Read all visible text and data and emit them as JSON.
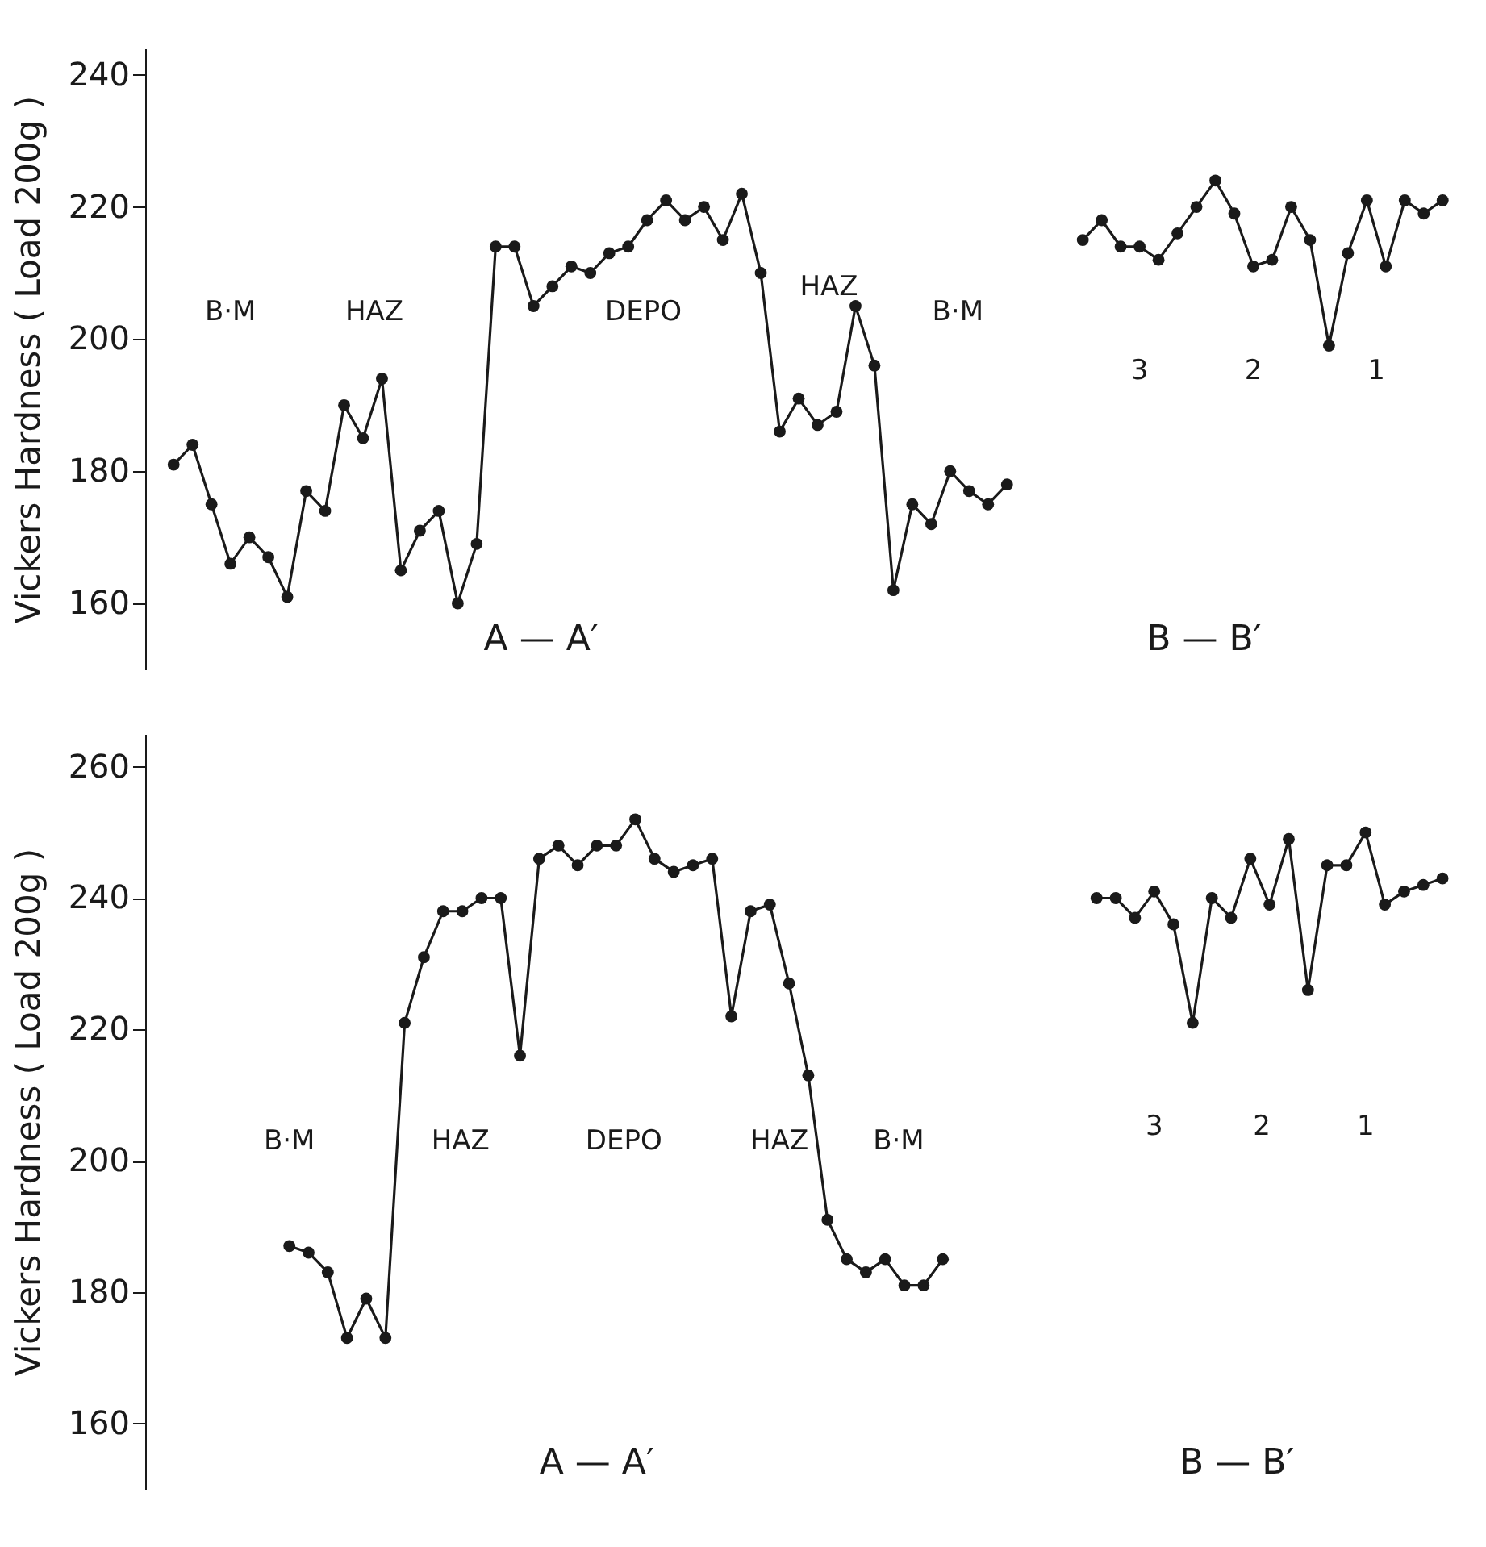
{
  "chart_data": [
    {
      "type": "line",
      "ylabel": "Vickers  Hardness  ( Load 200g )",
      "categories": [
        null,
        null,
        null,
        null,
        null,
        null,
        null,
        null,
        null,
        null,
        null,
        null,
        null,
        null,
        null,
        null,
        null,
        null,
        null,
        null,
        null,
        null,
        null,
        null,
        null,
        null,
        null,
        null,
        null,
        null,
        null,
        null,
        null,
        null,
        null,
        null,
        null,
        null,
        null,
        null,
        null,
        null,
        null,
        null,
        null,
        null,
        null,
        null,
        null,
        null,
        null,
        null,
        null,
        null,
        null,
        null,
        null,
        null,
        null,
        null,
        null,
        null,
        null,
        null,
        null,
        null,
        null,
        null
      ],
      "ylim": [
        150,
        244
      ],
      "yticks": [
        160,
        180,
        200,
        220,
        240
      ],
      "tick_labels": "y",
      "grid": false,
      "legend": false,
      "marker": "circle",
      "line_style": "solid",
      "series": [
        {
          "color": "#1a1a1a",
          "values": [
            181,
            184,
            175,
            166,
            170,
            167,
            161,
            177,
            174,
            190,
            185,
            194,
            165,
            171,
            174,
            160,
            169,
            214,
            214,
            205,
            208,
            211,
            210,
            213,
            214,
            218,
            221,
            218,
            220,
            215,
            222,
            210,
            186,
            191,
            187,
            189,
            205,
            196,
            162,
            175,
            172,
            180,
            177,
            175,
            178,
            null,
            null,
            null,
            null,
            null,
            null,
            null,
            null,
            null,
            null,
            null,
            null,
            null,
            null,
            null,
            null,
            null,
            null,
            null,
            null,
            null,
            null,
            null
          ]
        },
        {
          "color": "#1a1a1a",
          "values": [
            null,
            null,
            null,
            null,
            null,
            null,
            null,
            null,
            null,
            null,
            null,
            null,
            null,
            null,
            null,
            null,
            null,
            null,
            null,
            null,
            null,
            null,
            null,
            null,
            null,
            null,
            null,
            null,
            null,
            null,
            null,
            null,
            null,
            null,
            null,
            null,
            null,
            null,
            null,
            null,
            null,
            null,
            null,
            null,
            null,
            null,
            null,
            null,
            215,
            218,
            214,
            214,
            212,
            216,
            220,
            224,
            219,
            211,
            212,
            220,
            215,
            199,
            213,
            221,
            211,
            221,
            219,
            221
          ]
        }
      ],
      "annotations": [
        "B·M",
        "HAZ",
        "DEPO",
        "HAZ",
        "B·M",
        "3",
        "2",
        "1",
        "A — A′",
        "B — B′"
      ]
    },
    {
      "type": "line",
      "ylabel": "Vickers  Hardness  ( Load 200g )",
      "categories": [
        null,
        null,
        null,
        null,
        null,
        null,
        null,
        null,
        null,
        null,
        null,
        null,
        null,
        null,
        null,
        null,
        null,
        null,
        null,
        null,
        null,
        null,
        null,
        null,
        null,
        null,
        null,
        null,
        null,
        null,
        null,
        null,
        null,
        null,
        null,
        null,
        null,
        null,
        null,
        null,
        null,
        null,
        null,
        null,
        null,
        null,
        null,
        null,
        null,
        null,
        null,
        null,
        null,
        null,
        null,
        null,
        null,
        null,
        null,
        null,
        null,
        null,
        null,
        null,
        null,
        null,
        null
      ],
      "ylim": [
        150,
        265
      ],
      "yticks": [
        160,
        180,
        200,
        220,
        240,
        260
      ],
      "tick_labels": "y",
      "grid": false,
      "legend": false,
      "marker": "circle",
      "line_style": "solid",
      "series": [
        {
          "color": "#1a1a1a",
          "values": [
            null,
            null,
            null,
            null,
            null,
            null,
            187,
            186,
            183,
            173,
            179,
            173,
            221,
            231,
            238,
            238,
            240,
            240,
            216,
            246,
            248,
            245,
            248,
            248,
            252,
            246,
            244,
            245,
            246,
            222,
            238,
            239,
            227,
            213,
            191,
            185,
            183,
            185,
            181,
            181,
            185,
            null,
            null,
            null,
            null,
            null,
            null,
            null,
            null,
            null,
            null,
            null,
            null,
            null,
            null,
            null,
            null,
            null,
            null,
            null,
            null,
            null,
            null,
            null,
            null,
            null,
            null
          ]
        },
        {
          "color": "#1a1a1a",
          "values": [
            null,
            null,
            null,
            null,
            null,
            null,
            null,
            null,
            null,
            null,
            null,
            null,
            null,
            null,
            null,
            null,
            null,
            null,
            null,
            null,
            null,
            null,
            null,
            null,
            null,
            null,
            null,
            null,
            null,
            null,
            null,
            null,
            null,
            null,
            null,
            null,
            null,
            null,
            null,
            null,
            null,
            null,
            null,
            null,
            null,
            null,
            null,
            null,
            240,
            240,
            237,
            241,
            236,
            221,
            240,
            237,
            246,
            239,
            249,
            226,
            245,
            245,
            250,
            239,
            241,
            242,
            243
          ]
        }
      ],
      "annotations": [
        "B·M",
        "HAZ",
        "DEPO",
        "HAZ",
        "B·M",
        "3",
        "2",
        "1",
        "A — A′",
        "B — B′"
      ]
    }
  ]
}
